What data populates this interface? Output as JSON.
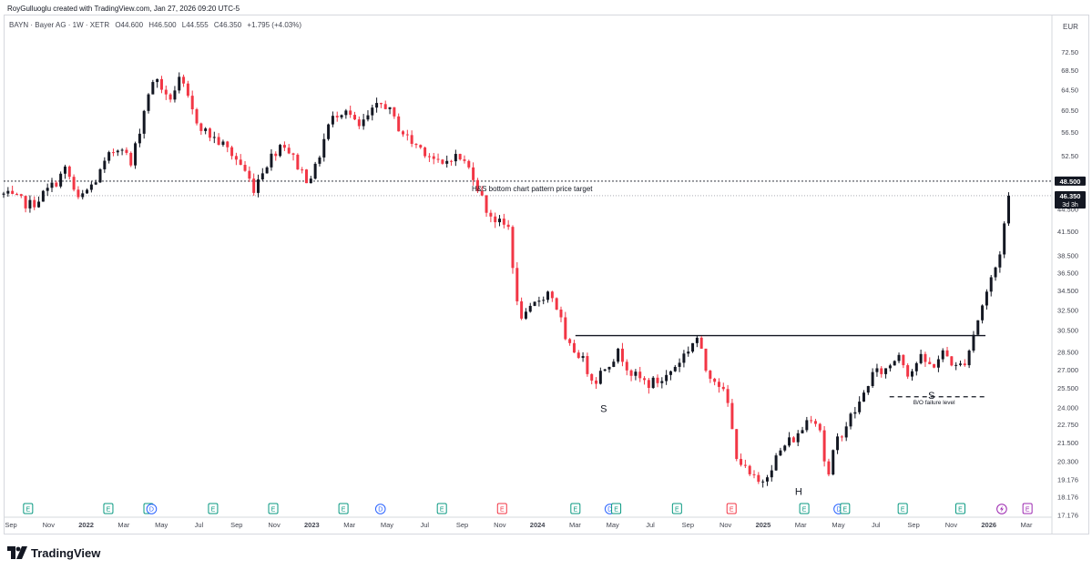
{
  "header": {
    "credit": "RoyGulluoglu created with TradingView.com, Jan 27, 2026 09:20 UTC-5"
  },
  "legend": {
    "symbol": "BAYN · Bayer AG · 1W · XETR",
    "open": "O44.600",
    "high": "H46.500",
    "low": "L44.555",
    "close": "C46.350",
    "change": "+1.795 (+4.03%)"
  },
  "brand": {
    "name": "TradingView"
  },
  "colors": {
    "up": "#131722",
    "down": "#f23645",
    "text": "#131722",
    "axis_text": "#434651",
    "grid_border": "#d6d8de",
    "earnings_green": "#089981",
    "earnings_red": "#f23645",
    "dividend_blue": "#2962ff",
    "split_purple": "#9c27b0"
  },
  "chart_data": {
    "type": "candlestick",
    "currency": "EUR",
    "y_scale": "log",
    "ylim": [
      17.2,
      76.5
    ],
    "y_ticks": [
      "72.50",
      "68.50",
      "64.50",
      "60.50",
      "56.50",
      "52.50",
      "48.500",
      "44.500",
      "41.500",
      "38.500",
      "36.500",
      "34.500",
      "32.500",
      "30.500",
      "28.500",
      "27.000",
      "25.500",
      "24.000",
      "22.750",
      "21.500",
      "20.300",
      "19.176",
      "18.176",
      "17.176"
    ],
    "x_ticks": [
      "Sep",
      "Nov",
      "2022",
      "Mar",
      "May",
      "Jul",
      "Sep",
      "Nov",
      "2023",
      "Mar",
      "May",
      "Jul",
      "Sep",
      "Nov",
      "2024",
      "Mar",
      "May",
      "Jul",
      "Sep",
      "Nov",
      "2025",
      "Mar",
      "May",
      "Jul",
      "Sep",
      "Nov",
      "2026",
      "Mar"
    ],
    "x_range": [
      "2021-09-01",
      "2026-03-31"
    ],
    "price_labels": [
      {
        "value": 48.5,
        "text": "48.500"
      },
      {
        "value": 46.35,
        "text": "46.350",
        "sub": "3d 3h"
      }
    ],
    "annotations": {
      "target_label": "H&S bottom chart pattern price target",
      "target_value": 48.5,
      "neckline_value": 30.0,
      "neckline_from": "2024-03-01",
      "neckline_to": "2025-12-15",
      "failure_label": "B/O failure level",
      "failure_value": 24.8,
      "failure_from": "2025-07-15",
      "failure_to": "2025-12-15",
      "shoulder_left": {
        "text": "S",
        "date": "2024-04-15",
        "value": 24.2
      },
      "head": {
        "text": "H",
        "date": "2025-02-20",
        "value": 18.7
      },
      "shoulder_right": {
        "text": "S",
        "date": "2025-09-20",
        "value": 25.2
      }
    },
    "anchors": [
      [
        "2021-09-01",
        46.5
      ],
      [
        "2021-10-15",
        45.0
      ],
      [
        "2021-11-20",
        48.0
      ],
      [
        "2021-12-10",
        50.5
      ],
      [
        "2021-12-28",
        45.5
      ],
      [
        "2022-01-25",
        48.5
      ],
      [
        "2022-02-20",
        53.0
      ],
      [
        "2022-03-10",
        54.5
      ],
      [
        "2022-03-22",
        50.5
      ],
      [
        "2022-04-20",
        64.0
      ],
      [
        "2022-05-05",
        67.0
      ],
      [
        "2022-05-20",
        62.0
      ],
      [
        "2022-06-10",
        66.5
      ],
      [
        "2022-07-01",
        59.5
      ],
      [
        "2022-07-20",
        56.5
      ],
      [
        "2022-08-20",
        54.0
      ],
      [
        "2022-09-15",
        51.0
      ],
      [
        "2022-10-05",
        47.5
      ],
      [
        "2022-10-20",
        50.5
      ],
      [
        "2022-11-20",
        55.0
      ],
      [
        "2022-12-10",
        51.5
      ],
      [
        "2022-12-28",
        49.0
      ],
      [
        "2023-01-10",
        50.0
      ],
      [
        "2023-01-31",
        57.5
      ],
      [
        "2023-02-15",
        60.0
      ],
      [
        "2023-03-01",
        61.0
      ],
      [
        "2023-03-20",
        57.0
      ],
      [
        "2023-04-15",
        60.5
      ],
      [
        "2023-05-01",
        62.0
      ],
      [
        "2023-05-20",
        58.0
      ],
      [
        "2023-06-10",
        55.0
      ],
      [
        "2023-07-10",
        53.0
      ],
      [
        "2023-07-31",
        50.5
      ],
      [
        "2023-08-15",
        52.5
      ],
      [
        "2023-09-01",
        52.0
      ],
      [
        "2023-09-20",
        49.5
      ],
      [
        "2023-10-10",
        44.5
      ],
      [
        "2023-10-31",
        42.5
      ],
      [
        "2023-11-15",
        42.0
      ],
      [
        "2023-11-20",
        40.5
      ],
      [
        "2023-11-25",
        33.5
      ],
      [
        "2023-12-10",
        31.5
      ],
      [
        "2024-01-01",
        33.5
      ],
      [
        "2024-01-20",
        34.5
      ],
      [
        "2024-02-05",
        32.0
      ],
      [
        "2024-02-15",
        29.0
      ],
      [
        "2024-03-05",
        28.5
      ],
      [
        "2024-03-31",
        26.0
      ],
      [
        "2024-04-20",
        27.5
      ],
      [
        "2024-05-10",
        28.5
      ],
      [
        "2024-06-01",
        26.5
      ],
      [
        "2024-06-25",
        25.8
      ],
      [
        "2024-07-20",
        26.2
      ],
      [
        "2024-08-10",
        27.5
      ],
      [
        "2024-08-31",
        29.0
      ],
      [
        "2024-09-10",
        30.0
      ],
      [
        "2024-09-25",
        27.0
      ],
      [
        "2024-10-15",
        26.0
      ],
      [
        "2024-11-01",
        24.0
      ],
      [
        "2024-11-10",
        21.0
      ],
      [
        "2024-11-30",
        19.5
      ],
      [
        "2024-12-20",
        18.9
      ],
      [
        "2025-01-15",
        20.5
      ],
      [
        "2025-02-01",
        21.5
      ],
      [
        "2025-02-20",
        22.0
      ],
      [
        "2025-03-10",
        23.5
      ],
      [
        "2025-03-25",
        22.8
      ],
      [
        "2025-04-07",
        19.0
      ],
      [
        "2025-04-20",
        21.5
      ],
      [
        "2025-05-10",
        23.0
      ],
      [
        "2025-05-31",
        24.5
      ],
      [
        "2025-06-15",
        26.5
      ],
      [
        "2025-07-10",
        27.0
      ],
      [
        "2025-07-31",
        28.5
      ],
      [
        "2025-08-15",
        26.5
      ],
      [
        "2025-08-31",
        28.0
      ],
      [
        "2025-09-20",
        27.2
      ],
      [
        "2025-10-10",
        28.5
      ],
      [
        "2025-10-31",
        27.0
      ],
      [
        "2025-11-15",
        28.0
      ],
      [
        "2025-11-25",
        30.0
      ],
      [
        "2025-12-10",
        33.0
      ],
      [
        "2025-12-25",
        36.0
      ],
      [
        "2026-01-05",
        38.0
      ],
      [
        "2026-01-15",
        43.0
      ],
      [
        "2026-01-26",
        46.35
      ]
    ],
    "events": [
      {
        "type": "E",
        "date": "2021-10-10",
        "style": "green"
      },
      {
        "type": "E",
        "date": "2022-02-15",
        "style": "green"
      },
      {
        "type": "E",
        "date": "2022-04-20",
        "style": "green"
      },
      {
        "type": "D",
        "date": "2022-04-25",
        "style": "blue"
      },
      {
        "type": "E",
        "date": "2022-08-01",
        "style": "green"
      },
      {
        "type": "E",
        "date": "2022-11-05",
        "style": "green"
      },
      {
        "type": "E",
        "date": "2023-02-25",
        "style": "green"
      },
      {
        "type": "D",
        "date": "2023-04-25",
        "style": "blue"
      },
      {
        "type": "E",
        "date": "2023-08-01",
        "style": "green"
      },
      {
        "type": "E",
        "date": "2023-11-05",
        "style": "red"
      },
      {
        "type": "E",
        "date": "2024-03-01",
        "style": "green"
      },
      {
        "type": "D",
        "date": "2024-04-25",
        "style": "blue"
      },
      {
        "type": "E",
        "date": "2024-05-05",
        "style": "green"
      },
      {
        "type": "E",
        "date": "2024-08-10",
        "style": "green"
      },
      {
        "type": "E",
        "date": "2024-11-05",
        "style": "red"
      },
      {
        "type": "E",
        "date": "2025-03-01",
        "style": "green"
      },
      {
        "type": "D",
        "date": "2025-04-25",
        "style": "blue"
      },
      {
        "type": "E",
        "date": "2025-05-05",
        "style": "green"
      },
      {
        "type": "E",
        "date": "2025-08-05",
        "style": "green"
      },
      {
        "type": "E",
        "date": "2025-11-05",
        "style": "green"
      },
      {
        "type": "split",
        "date": "2026-01-10",
        "style": "purple"
      },
      {
        "type": "E",
        "date": "2026-02-20",
        "style": "purple-outline"
      }
    ]
  }
}
